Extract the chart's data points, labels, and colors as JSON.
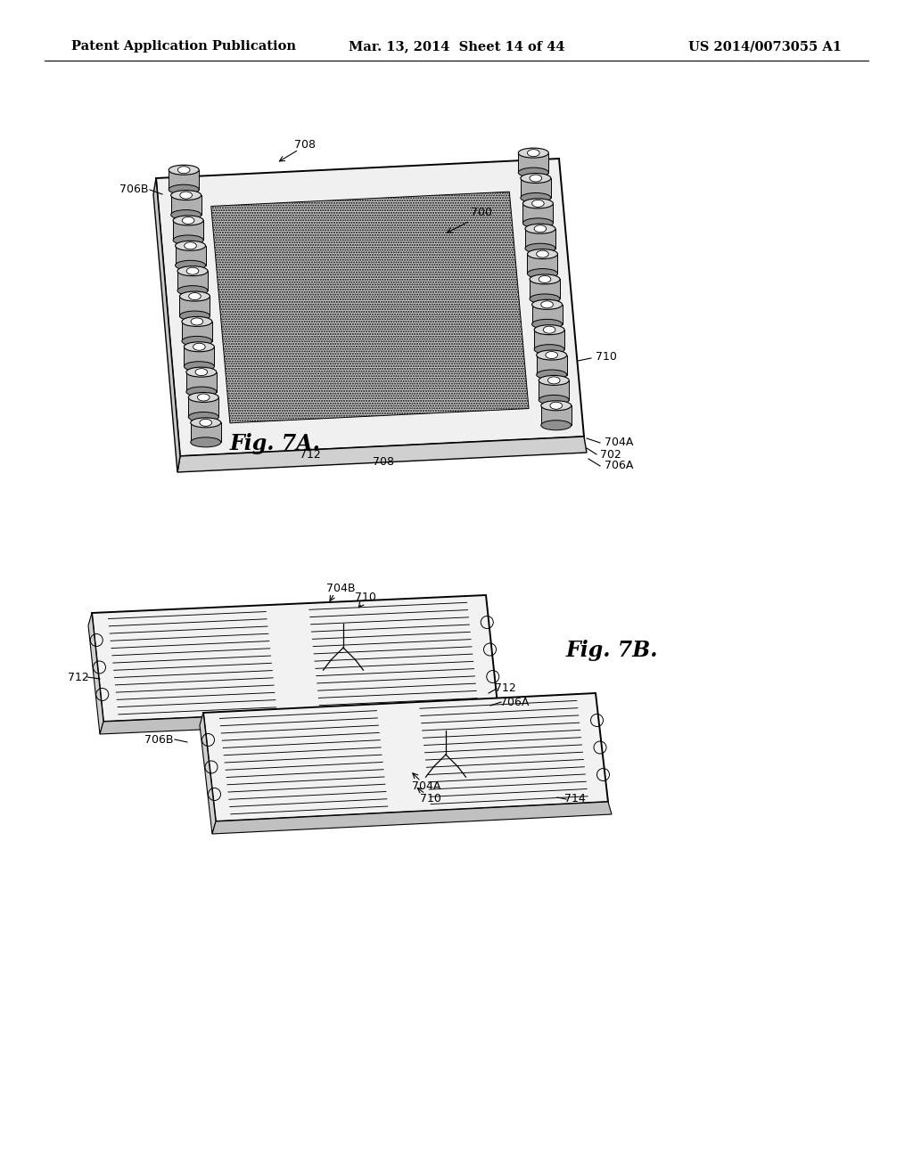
{
  "background_color": "#ffffff",
  "header": {
    "left": "Patent Application Publication",
    "center": "Mar. 13, 2014  Sheet 14 of 44",
    "right": "US 2014/0073055 A1",
    "fontsize": 10.5
  },
  "fig7a": {
    "label": "Fig. 7A.",
    "label_fontsize": 17
  },
  "fig7b": {
    "label": "Fig. 7B.",
    "label_fontsize": 17
  }
}
